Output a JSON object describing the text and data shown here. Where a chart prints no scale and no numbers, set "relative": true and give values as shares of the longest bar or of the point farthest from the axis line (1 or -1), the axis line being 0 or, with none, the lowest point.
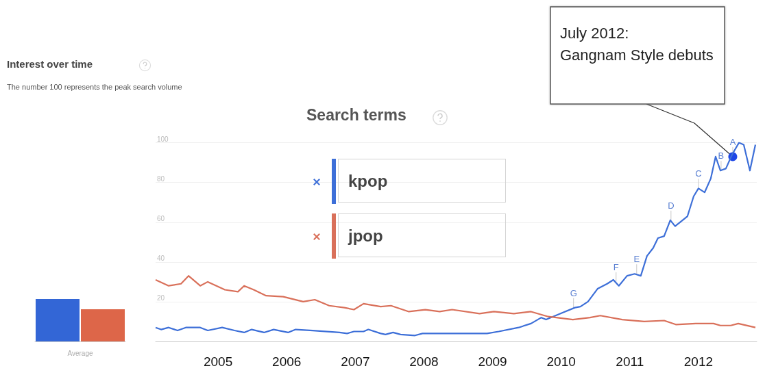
{
  "chart_data": [
    {
      "type": "bar",
      "relative": true,
      "title": "Interest over time",
      "subtitle": "The number 100 represents the peak search volume",
      "xlabel": "Average",
      "categories": [
        null,
        null
      ],
      "values": [
        1,
        0.76
      ],
      "colors": [
        "#3366d6",
        "#dd6649"
      ],
      "legend": false,
      "grid": false
    },
    {
      "type": "line",
      "legend_title": "Search terms",
      "series": [
        {
          "name": "kpop",
          "color": "#3d6fd8",
          "x": [
            2004.09,
            2004.17,
            2004.28,
            2004.41,
            2004.53,
            2004.74,
            2004.85,
            2005.06,
            2005.24,
            2005.38,
            2005.49,
            2005.67,
            2005.81,
            2006.02,
            2006.13,
            2006.38,
            2006.77,
            2006.88,
            2006.98,
            2007.12,
            2007.19,
            2007.37,
            2007.44,
            2007.55,
            2007.66,
            2007.87,
            2007.98,
            2008.92,
            2009.09,
            2009.38,
            2009.56,
            2009.71,
            2009.78,
            2010.02,
            2010.2,
            2010.28,
            2010.39,
            2010.53,
            2010.67,
            2010.76,
            2010.84,
            2010.96,
            2011.07,
            2011.16,
            2011.25,
            2011.34,
            2011.41,
            2011.5,
            2011.59,
            2011.66,
            2011.84,
            2011.93,
            2012.0,
            2012.09,
            2012.18,
            2012.25,
            2012.32,
            2012.4,
            2012.49,
            2012.59,
            2012.66,
            2012.75,
            2012.83
          ],
          "values": [
            7,
            6,
            7,
            5.5,
            7,
            7,
            5.5,
            7,
            5.5,
            4.5,
            6,
            4.5,
            6,
            4.5,
            6,
            5.5,
            4.5,
            4,
            5,
            5,
            6,
            4,
            3.5,
            4.5,
            3.5,
            3,
            4,
            4,
            5,
            7,
            9,
            12,
            11,
            14.5,
            17,
            17.5,
            20,
            26.5,
            29,
            31,
            28,
            33,
            34,
            33,
            43,
            47,
            52,
            53,
            61,
            58,
            63,
            73,
            77,
            75,
            82,
            93,
            86,
            87,
            94,
            100,
            99,
            86,
            99
          ]
        },
        {
          "name": "jpop",
          "color": "#d9705a",
          "x": [
            2004.09,
            2004.28,
            2004.46,
            2004.57,
            2004.74,
            2004.85,
            2005.1,
            2005.29,
            2005.38,
            2005.52,
            2005.7,
            2005.95,
            2006.24,
            2006.41,
            2006.62,
            2006.84,
            2006.98,
            2007.12,
            2007.37,
            2007.52,
            2007.78,
            2008.02,
            2008.23,
            2008.41,
            2008.81,
            2009.02,
            2009.31,
            2009.56,
            2009.81,
            2010.17,
            2010.42,
            2010.57,
            2010.89,
            2011.21,
            2011.5,
            2011.67,
            2011.96,
            2012.22,
            2012.32,
            2012.47,
            2012.58,
            2012.83
          ],
          "values": [
            31,
            28,
            29,
            33,
            28,
            30,
            26,
            25,
            28,
            26,
            23,
            22.5,
            20,
            21,
            18,
            17,
            16,
            19,
            17.5,
            18,
            15,
            16,
            15,
            16,
            14,
            15,
            14,
            15,
            12.5,
            11,
            12,
            13,
            11,
            10,
            10.5,
            8.5,
            9,
            9,
            8,
            8,
            9,
            7
          ]
        }
      ],
      "xlim": [
        2004.09,
        2012.85
      ],
      "xticks": [
        2005,
        2006,
        2007,
        2008,
        2009,
        2010,
        2011,
        2012
      ],
      "ylim": [
        0,
        100
      ],
      "yticks": [
        {
          "value": 0,
          "label": null
        },
        20,
        40,
        60,
        80,
        100
      ],
      "grid": "y",
      "legend": "top",
      "marker": "none",
      "line_style": "solid",
      "annotations": [
        "July 2012:\nGangnam Style debuts",
        {
          "text": "A",
          "x": 2012.5,
          "y": 93
        },
        {
          "text": "B",
          "x": 2012.33,
          "y": 86
        },
        {
          "text": "C",
          "x": 2012.0,
          "y": 77
        },
        {
          "text": "D",
          "x": 2011.6,
          "y": 61
        },
        {
          "text": "E",
          "x": 2011.1,
          "y": 34
        },
        {
          "text": "F",
          "x": 2010.8,
          "y": 30
        },
        {
          "text": "G",
          "x": 2010.18,
          "y": 17
        }
      ]
    }
  ]
}
